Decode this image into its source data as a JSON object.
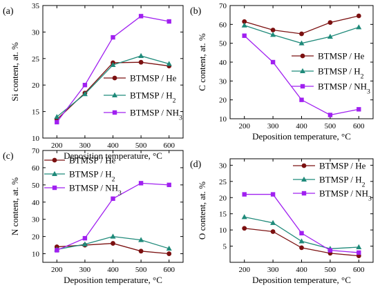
{
  "colors": {
    "BTMSP / He": "#7b1010",
    "BTMSP / H2": "#1f8a7a",
    "BTMSP / NH3": "#a020f0"
  },
  "chart_data": [
    {
      "type": "line",
      "panel_label": "(a)",
      "ylabel": "Si content, at. %",
      "xlabel": "Deposition temperature, °C",
      "x": [
        200,
        300,
        400,
        500,
        600
      ],
      "xlim": [
        150,
        650
      ],
      "ylim": [
        10,
        35
      ],
      "yticks": [
        10,
        15,
        20,
        25,
        30,
        35
      ],
      "legend_position": "right",
      "series": [
        {
          "name": "BTMSP / He",
          "values": [
            13.5,
            18.5,
            24.2,
            24.3,
            23.6
          ],
          "marker": "circle"
        },
        {
          "name": "BTMSP / H2",
          "values": [
            14.0,
            18.3,
            23.8,
            25.5,
            24.0
          ],
          "marker": "triangle"
        },
        {
          "name": "BTMSP / NH3",
          "values": [
            13.0,
            20.0,
            29.0,
            33.0,
            32.0
          ],
          "marker": "square"
        }
      ]
    },
    {
      "type": "line",
      "panel_label": "(b)",
      "ylabel": "C content, at. %",
      "xlabel": "Deposition temperature, °C",
      "x": [
        200,
        300,
        400,
        500,
        600
      ],
      "xlim": [
        150,
        650
      ],
      "ylim": [
        10,
        70
      ],
      "yticks": [
        10,
        20,
        30,
        40,
        50,
        60,
        70
      ],
      "legend_position": "right",
      "series": [
        {
          "name": "BTMSP / He",
          "values": [
            61.5,
            57.0,
            55.0,
            61.0,
            64.5
          ],
          "marker": "circle"
        },
        {
          "name": "BTMSP / H2",
          "values": [
            59.5,
            54.5,
            50.0,
            53.5,
            58.5
          ],
          "marker": "triangle"
        },
        {
          "name": "BTMSP / NH3",
          "values": [
            54.0,
            40.0,
            20.0,
            12.0,
            15.0
          ],
          "marker": "square"
        }
      ]
    },
    {
      "type": "line",
      "panel_label": "(c)",
      "ylabel": "N content, at. %",
      "xlabel": "Deposition temperature, °C",
      "x": [
        200,
        300,
        400,
        500,
        600
      ],
      "xlim": [
        150,
        650
      ],
      "ylim": [
        5,
        70
      ],
      "yticks": [
        10,
        20,
        30,
        40,
        50,
        60,
        70
      ],
      "legend_position": "top-left",
      "series": [
        {
          "name": "BTMSP / He",
          "values": [
            14.0,
            15.0,
            16.0,
            11.5,
            10.0
          ],
          "marker": "circle"
        },
        {
          "name": "BTMSP / H2",
          "values": [
            12.5,
            15.5,
            20.0,
            18.0,
            13.0
          ],
          "marker": "triangle"
        },
        {
          "name": "BTMSP / NH3",
          "values": [
            12.0,
            19.0,
            42.0,
            51.0,
            50.0
          ],
          "marker": "square"
        }
      ]
    },
    {
      "type": "line",
      "panel_label": "(d)",
      "ylabel": "O content, at. %",
      "xlabel": "Deposition temperature, °C",
      "x": [
        200,
        300,
        400,
        500,
        600
      ],
      "xlim": [
        150,
        650
      ],
      "ylim": [
        0,
        32
      ],
      "yticks": [
        5,
        10,
        15,
        20,
        25,
        30
      ],
      "legend_position": "top-right",
      "series": [
        {
          "name": "BTMSP / He",
          "values": [
            10.5,
            9.5,
            4.5,
            2.8,
            2.0
          ],
          "marker": "circle"
        },
        {
          "name": "BTMSP / H2",
          "values": [
            14.0,
            12.2,
            6.5,
            4.2,
            4.7
          ],
          "marker": "triangle"
        },
        {
          "name": "BTMSP / NH3",
          "values": [
            21.0,
            21.0,
            9.0,
            3.7,
            3.0
          ],
          "marker": "square"
        }
      ]
    }
  ]
}
